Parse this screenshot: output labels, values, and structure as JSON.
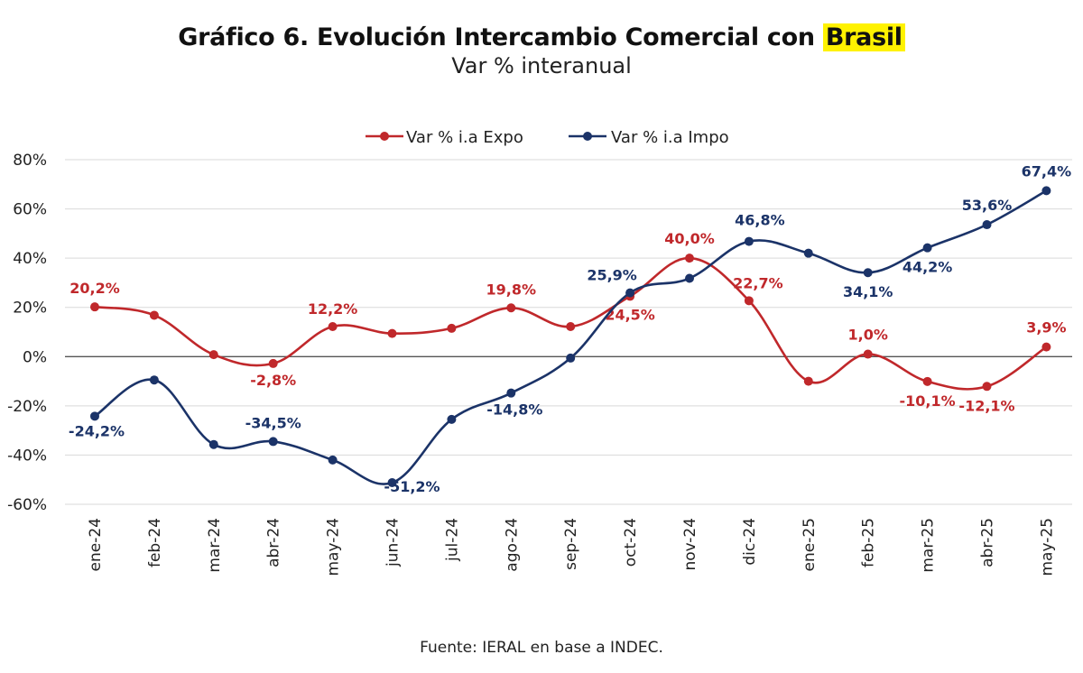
{
  "title": {
    "prefix": "Gráfico 6. Evolución Intercambio Comercial con ",
    "highlight": "Brasil",
    "subtitle": "Var % interanual"
  },
  "source": "Fuente: IERAL en base a INDEC.",
  "colors": {
    "expo": "#c0282b",
    "impo": "#1b3368",
    "grid": "#d9d9d9",
    "zero_line": "#555555",
    "highlight": "#fff200"
  },
  "chart_data": {
    "type": "line",
    "title": "Gráfico 6. Evolución Intercambio Comercial con Brasil",
    "subtitle": "Var % interanual",
    "xlabel": "",
    "ylabel": "",
    "x": [
      "ene-24",
      "feb-24",
      "mar-24",
      "abr-24",
      "may-24",
      "jun-24",
      "jul-24",
      "ago-24",
      "sep-24",
      "oct-24",
      "nov-24",
      "dic-24",
      "ene-25",
      "feb-25",
      "mar-25",
      "abr-25",
      "may-25"
    ],
    "ylim": [
      -60,
      80
    ],
    "yticks": [
      80,
      60,
      40,
      20,
      0,
      -20,
      -40,
      -60
    ],
    "ytick_labels": [
      "80%",
      "60%",
      "40%",
      "20%",
      "0%",
      "-20%",
      "-40%",
      "-60%"
    ],
    "grid": true,
    "legend": "top-center",
    "series": [
      {
        "name": "Var % i.a Expo",
        "color": "#c0282b",
        "values": [
          20.2,
          16.8,
          0.8,
          -2.8,
          12.2,
          9.4,
          11.5,
          19.8,
          12.2,
          24.5,
          40.0,
          22.7,
          -10.0,
          1.0,
          -10.1,
          -12.1,
          3.9
        ],
        "labels": [
          "20,2%",
          "",
          "",
          "-2,8%",
          "12,2%",
          "",
          "",
          "19,8%",
          "",
          "24,5%",
          "40,0%",
          "22,7%",
          "",
          "1,0%",
          "-10,1%",
          "-12,1%",
          "3,9%"
        ]
      },
      {
        "name": "Var % i.a Impo",
        "color": "#1b3368",
        "values": [
          -24.2,
          -9.5,
          -35.7,
          -34.5,
          -42.0,
          -51.2,
          -25.5,
          -14.8,
          -0.6,
          25.9,
          31.8,
          46.8,
          42.0,
          34.1,
          44.2,
          53.6,
          67.4
        ],
        "labels": [
          "-24,2%",
          "",
          "",
          "-34,5%",
          "",
          "-51,2%",
          "",
          "-14,8%",
          "",
          "25,9%",
          "",
          "46,8%",
          "",
          "34,1%",
          "44,2%",
          "53,6%",
          "67,4%"
        ]
      }
    ]
  }
}
